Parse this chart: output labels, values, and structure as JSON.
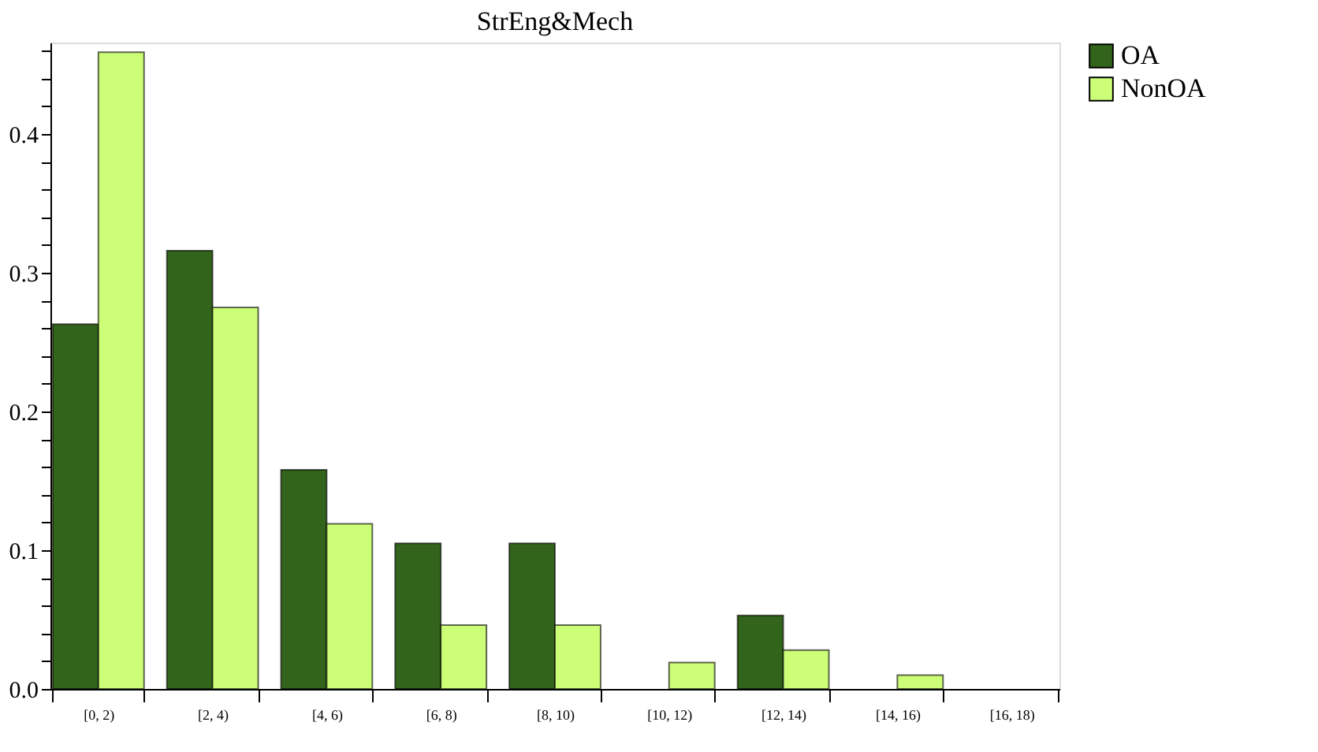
{
  "chart_data": {
    "type": "bar",
    "title": "StrEng&Mech",
    "categories": [
      "[0, 2)",
      "[2, 4)",
      "[4, 6)",
      "[6, 8)",
      "[8, 10)",
      "[10, 12)",
      "[12, 14)",
      "[14, 16)",
      "[16, 18)"
    ],
    "series": [
      {
        "name": "OA",
        "color": "#33641c",
        "values": [
          0.263,
          0.316,
          0.158,
          0.105,
          0.105,
          0,
          0.053,
          0,
          0
        ]
      },
      {
        "name": "NonOA",
        "color": "#ccff77",
        "values": [
          0.459,
          0.275,
          0.119,
          0.046,
          0.046,
          0.019,
          0.028,
          0.01,
          0
        ]
      }
    ],
    "ylim": [
      0,
      0.466
    ],
    "yticks": [
      {
        "value": 0,
        "label": "0.0"
      },
      {
        "value": 0.02,
        "label": null
      },
      {
        "value": 0.04,
        "label": null
      },
      {
        "value": 0.06,
        "label": null
      },
      {
        "value": 0.08,
        "label": null
      },
      {
        "value": 0.1,
        "label": "0.1"
      },
      {
        "value": 0.12,
        "label": null
      },
      {
        "value": 0.14,
        "label": null
      },
      {
        "value": 0.16,
        "label": null
      },
      {
        "value": 0.18,
        "label": null
      },
      {
        "value": 0.2,
        "label": "0.2"
      },
      {
        "value": 0.22,
        "label": null
      },
      {
        "value": 0.24,
        "label": null
      },
      {
        "value": 0.26,
        "label": null
      },
      {
        "value": 0.28,
        "label": null
      },
      {
        "value": 0.3,
        "label": "0.3"
      },
      {
        "value": 0.32,
        "label": null
      },
      {
        "value": 0.34,
        "label": null
      },
      {
        "value": 0.36,
        "label": null
      },
      {
        "value": 0.38,
        "label": null
      },
      {
        "value": 0.4,
        "label": "0.4"
      },
      {
        "value": 0.42,
        "label": null
      },
      {
        "value": 0.44,
        "label": null
      },
      {
        "value": 0.46,
        "label": null
      }
    ],
    "grid": false,
    "legend": "right"
  }
}
